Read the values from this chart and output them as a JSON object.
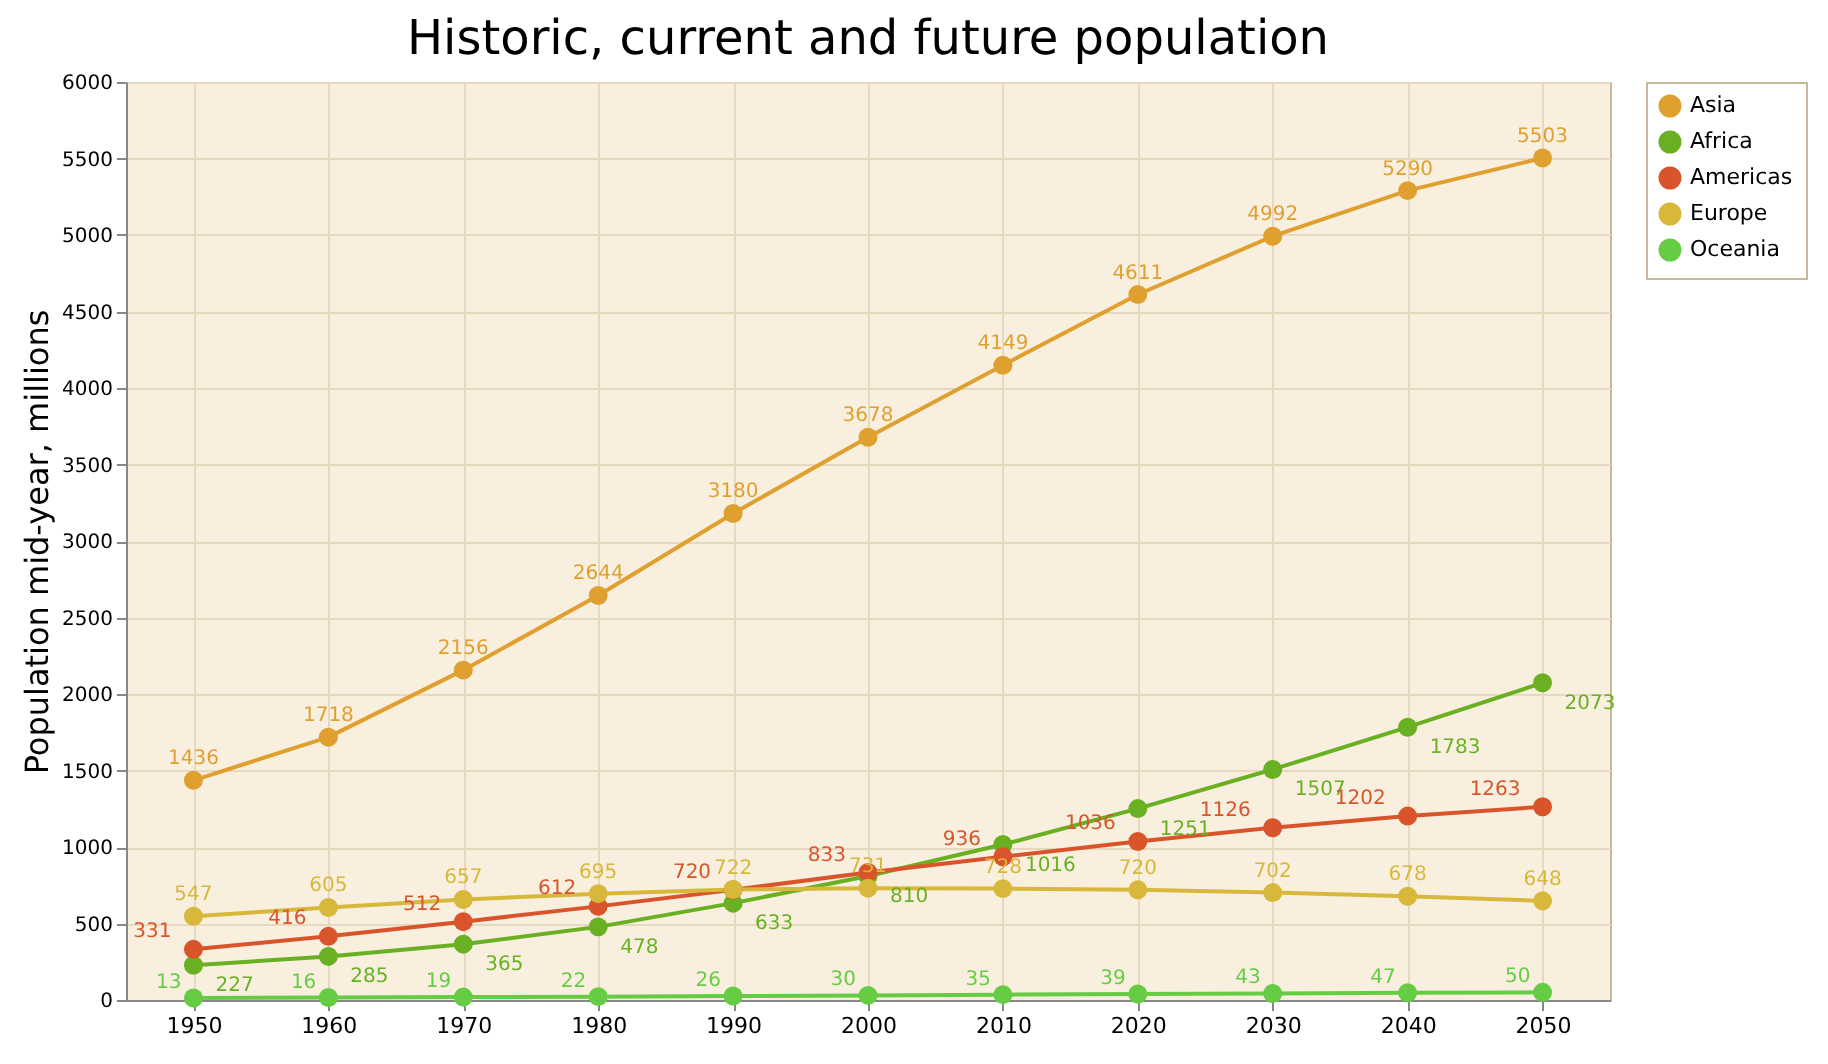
{
  "chart_data": {
    "type": "line",
    "title": "Historic, current and future population",
    "ylabel": "Population mid-year, millions",
    "x": [
      1950,
      1960,
      1970,
      1980,
      1990,
      2000,
      2010,
      2020,
      2030,
      2040,
      2050
    ],
    "series": [
      {
        "name": "Asia",
        "color": "#e0a030",
        "values": [
          1436,
          1718,
          2156,
          2644,
          3180,
          3678,
          4149,
          4611,
          4992,
          5290,
          5503
        ]
      },
      {
        "name": "Africa",
        "color": "#6ab023",
        "values": [
          227,
          285,
          365,
          478,
          633,
          810,
          1016,
          1251,
          1507,
          1783,
          2073
        ]
      },
      {
        "name": "Americas",
        "color": "#d9542a",
        "values": [
          331,
          416,
          512,
          612,
          720,
          833,
          936,
          1036,
          1126,
          1202,
          1263
        ]
      },
      {
        "name": "Europe",
        "color": "#d8b83a",
        "values": [
          547,
          605,
          657,
          695,
          722,
          731,
          728,
          720,
          702,
          678,
          648
        ]
      },
      {
        "name": "Oceania",
        "color": "#66cc44",
        "values": [
          13,
          16,
          19,
          22,
          26,
          30,
          35,
          39,
          43,
          47,
          50
        ]
      }
    ],
    "xlim": [
      1945,
      2055
    ],
    "xticks": [
      1950,
      1960,
      1970,
      1980,
      1990,
      2000,
      2010,
      2020,
      2030,
      2040,
      2050
    ],
    "ylim": [
      0,
      6000
    ],
    "yticks": [
      0,
      500,
      1000,
      1500,
      2000,
      2500,
      3000,
      3500,
      4000,
      4500,
      5000,
      5500,
      6000
    ],
    "grid": true,
    "legend": "top right",
    "marker": "circle",
    "line_style": "solid",
    "data_labels": true
  }
}
